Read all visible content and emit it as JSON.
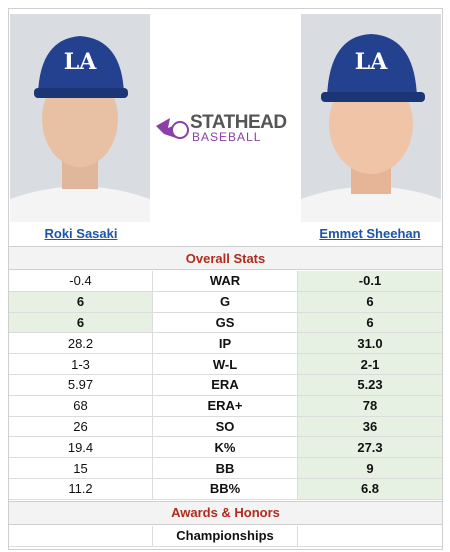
{
  "players": [
    {
      "name": "Roki Sasaki"
    },
    {
      "name": "Emmet Sheehan"
    }
  ],
  "logo": {
    "brand": "STATHEAD",
    "sub": "BASEBALL"
  },
  "sections": [
    {
      "title": "Overall Stats",
      "rows": [
        {
          "stat": "WAR",
          "left": "-0.4",
          "right": "-0.1",
          "highlight": [
            "right"
          ]
        },
        {
          "stat": "G",
          "left": "6",
          "right": "6",
          "highlight": [
            "left",
            "right"
          ]
        },
        {
          "stat": "GS",
          "left": "6",
          "right": "6",
          "highlight": [
            "left",
            "right"
          ]
        },
        {
          "stat": "IP",
          "left": "28.2",
          "right": "31.0",
          "highlight": [
            "right"
          ]
        },
        {
          "stat": "W-L",
          "left": "1-3",
          "right": "2-1",
          "highlight": [
            "right"
          ]
        },
        {
          "stat": "ERA",
          "left": "5.97",
          "right": "5.23",
          "highlight": [
            "right"
          ]
        },
        {
          "stat": "ERA+",
          "left": "68",
          "right": "78",
          "highlight": [
            "right"
          ]
        },
        {
          "stat": "SO",
          "left": "26",
          "right": "36",
          "highlight": [
            "right"
          ]
        },
        {
          "stat": "K%",
          "left": "19.4",
          "right": "27.3",
          "highlight": [
            "right"
          ]
        },
        {
          "stat": "BB",
          "left": "15",
          "right": "9",
          "highlight": [
            "right"
          ]
        },
        {
          "stat": "BB%",
          "left": "11.2",
          "right": "6.8",
          "highlight": [
            "right"
          ]
        }
      ]
    },
    {
      "title": "Awards & Honors",
      "rows": [
        {
          "stat": "Championships"
        }
      ]
    }
  ]
}
